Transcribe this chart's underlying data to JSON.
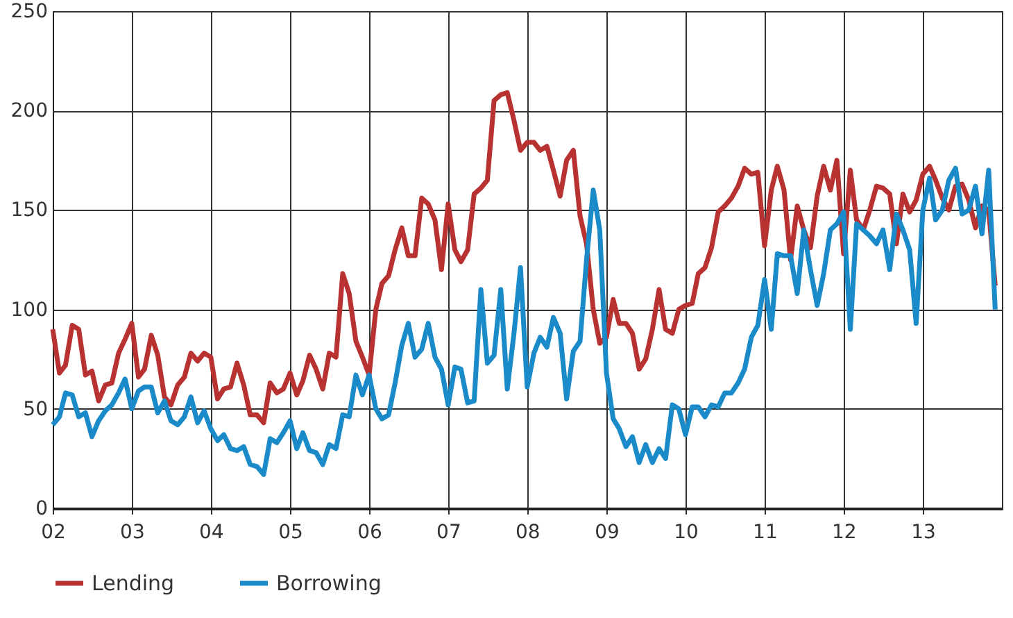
{
  "chart_data": {
    "type": "line",
    "x": [
      "2002-01",
      "2002-02",
      "2002-03",
      "2002-04",
      "2002-05",
      "2002-06",
      "2002-07",
      "2002-08",
      "2002-09",
      "2002-10",
      "2002-11",
      "2002-12",
      "2003-01",
      "2003-02",
      "2003-03",
      "2003-04",
      "2003-05",
      "2003-06",
      "2003-07",
      "2003-08",
      "2003-09",
      "2003-10",
      "2003-11",
      "2003-12",
      "2004-01",
      "2004-02",
      "2004-03",
      "2004-04",
      "2004-05",
      "2004-06",
      "2004-07",
      "2004-08",
      "2004-09",
      "2004-10",
      "2004-11",
      "2004-12",
      "2005-01",
      "2005-02",
      "2005-03",
      "2005-04",
      "2005-05",
      "2005-06",
      "2005-07",
      "2005-08",
      "2005-09",
      "2005-10",
      "2005-11",
      "2005-12",
      "2006-01",
      "2006-02",
      "2006-03",
      "2006-04",
      "2006-05",
      "2006-06",
      "2006-07",
      "2006-08",
      "2006-09",
      "2006-10",
      "2006-11",
      "2006-12",
      "2007-01",
      "2007-02",
      "2007-03",
      "2007-04",
      "2007-05",
      "2007-06",
      "2007-07",
      "2007-08",
      "2007-09",
      "2007-10",
      "2007-11",
      "2007-12",
      "2008-01",
      "2008-02",
      "2008-03",
      "2008-04",
      "2008-05",
      "2008-06",
      "2008-07",
      "2008-08",
      "2008-09",
      "2008-10",
      "2008-11",
      "2008-12",
      "2009-01",
      "2009-02",
      "2009-03",
      "2009-04",
      "2009-05",
      "2009-06",
      "2009-07",
      "2009-08",
      "2009-09",
      "2009-10",
      "2009-11",
      "2009-12",
      "2010-01",
      "2010-02",
      "2010-03",
      "2010-04",
      "2010-05",
      "2010-06",
      "2010-07",
      "2010-08",
      "2010-09",
      "2010-10",
      "2010-11",
      "2010-12",
      "2011-01",
      "2011-02",
      "2011-03",
      "2011-04",
      "2011-05",
      "2011-06",
      "2011-07",
      "2011-08",
      "2011-09",
      "2011-10",
      "2011-11",
      "2011-12",
      "2012-01",
      "2012-02",
      "2012-03",
      "2012-04",
      "2012-05",
      "2012-06",
      "2012-07",
      "2012-08",
      "2012-09",
      "2012-10",
      "2012-11",
      "2012-12",
      "2013-01",
      "2013-02",
      "2013-03",
      "2013-04",
      "2013-05",
      "2013-06",
      "2013-07",
      "2013-08",
      "2013-09",
      "2013-10",
      "2013-11",
      "2013-12"
    ],
    "series": [
      {
        "name": "Lending",
        "color": "#b83232",
        "values": [
          90,
          68,
          72,
          92,
          90,
          67,
          69,
          54,
          62,
          63,
          78,
          85,
          93,
          66,
          70,
          87,
          77,
          56,
          52,
          62,
          66,
          78,
          74,
          78,
          76,
          55,
          60,
          61,
          73,
          62,
          47,
          47,
          43,
          63,
          58,
          60,
          68,
          57,
          64,
          77,
          70,
          60,
          78,
          76,
          118,
          108,
          84,
          76,
          67,
          100,
          113,
          117,
          130,
          141,
          127,
          127,
          156,
          153,
          145,
          120,
          153,
          130,
          124,
          130,
          158,
          161,
          165,
          205,
          208,
          209,
          195,
          180,
          184,
          184,
          180,
          182,
          170,
          157,
          175,
          180,
          147,
          133,
          100,
          83,
          86,
          105,
          93,
          93,
          88,
          70,
          75,
          90,
          110,
          90,
          88,
          100,
          102,
          103,
          118,
          121,
          131,
          149,
          152,
          156,
          162,
          171,
          168,
          169,
          132,
          160,
          172,
          160,
          125,
          152,
          140,
          131,
          157,
          172,
          160,
          175,
          128,
          170,
          145,
          140,
          150,
          162,
          161,
          158,
          133,
          158,
          149,
          155,
          168,
          172,
          165,
          156,
          150,
          162,
          163,
          155,
          141,
          152,
          150,
          112
        ]
      },
      {
        "name": "Borrowing",
        "color": "#1a8ac8",
        "values": [
          42,
          46,
          58,
          57,
          46,
          48,
          36,
          44,
          49,
          52,
          58,
          65,
          50,
          59,
          61,
          61,
          48,
          54,
          44,
          42,
          46,
          56,
          43,
          49,
          40,
          34,
          37,
          30,
          29,
          31,
          22,
          21,
          17,
          35,
          33,
          38,
          44,
          30,
          38,
          29,
          28,
          22,
          32,
          30,
          47,
          46,
          67,
          57,
          67,
          50,
          45,
          47,
          63,
          82,
          93,
          76,
          80,
          93,
          76,
          70,
          52,
          71,
          70,
          53,
          54,
          110,
          73,
          77,
          110,
          60,
          88,
          121,
          61,
          78,
          86,
          81,
          96,
          88,
          55,
          79,
          84,
          125,
          160,
          140,
          68,
          45,
          40,
          31,
          36,
          23,
          32,
          23,
          30,
          25,
          52,
          50,
          37,
          51,
          51,
          46,
          52,
          51,
          58,
          58,
          63,
          70,
          86,
          92,
          115,
          90,
          128,
          127,
          127,
          108,
          140,
          120,
          102,
          118,
          140,
          143,
          149,
          90,
          143,
          140,
          137,
          133,
          140,
          120,
          148,
          140,
          130,
          93,
          150,
          166,
          145,
          150,
          165,
          171,
          148,
          150,
          162,
          138,
          170,
          100
        ]
      }
    ],
    "xlim": [
      "2002-01",
      "2014-01"
    ],
    "xticks": [
      {
        "value": "2002",
        "label": "02"
      },
      {
        "value": "2003",
        "label": "03"
      },
      {
        "value": "2004",
        "label": "04"
      },
      {
        "value": "2005",
        "label": "05"
      },
      {
        "value": "2006",
        "label": "06"
      },
      {
        "value": "2007",
        "label": "07"
      },
      {
        "value": "2008",
        "label": "08"
      },
      {
        "value": "2009",
        "label": "09"
      },
      {
        "value": "2010",
        "label": "10"
      },
      {
        "value": "2011",
        "label": "11"
      },
      {
        "value": "2012",
        "label": "12"
      },
      {
        "value": "2013",
        "label": "13"
      }
    ],
    "ylim": [
      0,
      250
    ],
    "yticks": [
      0,
      50,
      100,
      150,
      200,
      250
    ],
    "grid": true,
    "legend": "bottom left",
    "line_style": "solid",
    "marker": "none"
  }
}
